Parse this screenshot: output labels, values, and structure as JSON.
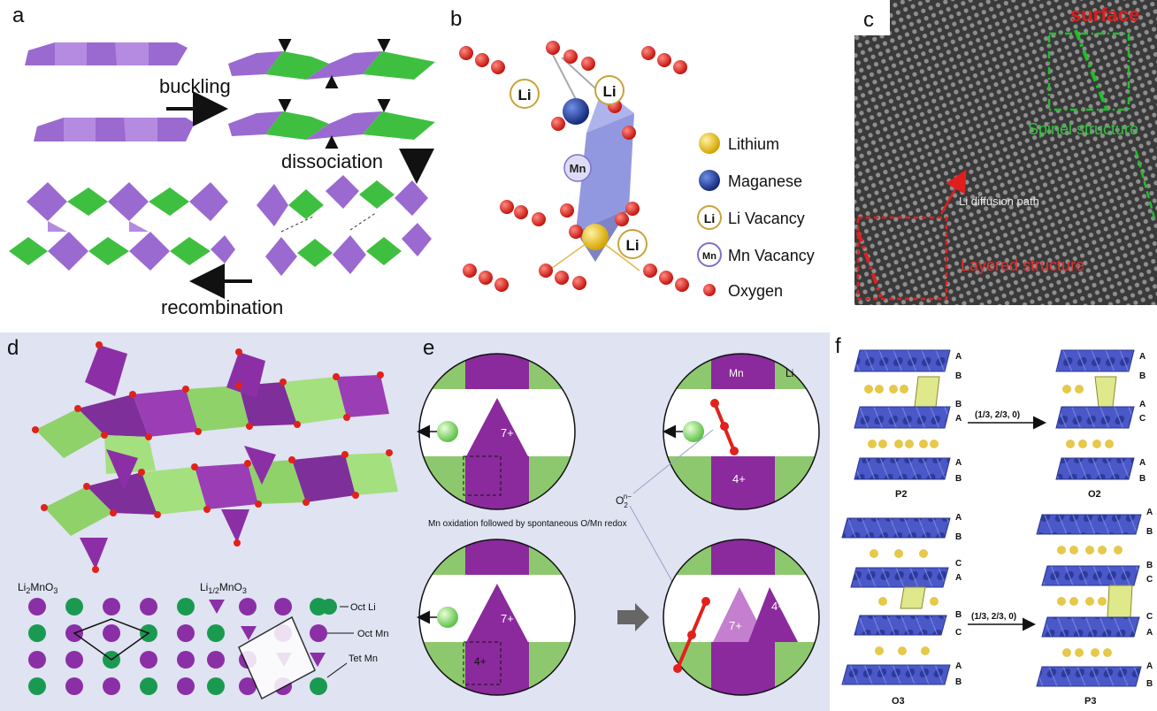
{
  "panel_labels": [
    "a",
    "b",
    "c",
    "d",
    "e",
    "f"
  ],
  "panel_a": {
    "buckling": "buckling",
    "dissociation": "dissociation",
    "recombination": "recombination"
  },
  "panel_b": {
    "atom_labels": {
      "li": "Li",
      "mn": "Mn"
    },
    "legend": [
      {
        "label": "Lithium",
        "color": "#f2c81e",
        "kind": "sphere"
      },
      {
        "label": "Maganese",
        "color": "#1f3c9e",
        "kind": "sphere"
      },
      {
        "label": "Li Vacancy",
        "color": "#c9a23a",
        "kind": "vacancy",
        "symbol": "Li"
      },
      {
        "label": "Mn Vacancy",
        "color": "#7b73c8",
        "kind": "vacancy",
        "symbol": "Mn"
      },
      {
        "label": "Oxygen",
        "color": "#e0221c",
        "kind": "dot"
      }
    ]
  },
  "panel_c": {
    "surface": "surface",
    "spinel": "Spinel structure",
    "li_path": "Li diffusion path",
    "layered": "Layered structure"
  },
  "panel_d": {
    "formula1": {
      "base": "Li",
      "sub": "2",
      "rest": "MnO",
      "sub2": "3"
    },
    "formula2": {
      "base": "Li",
      "sub": "1/2",
      "rest": "MnO",
      "sub2": "3"
    },
    "legend": [
      "Oct Li",
      "Oct Mn",
      "Tet Mn"
    ]
  },
  "panel_e": {
    "caption": "Mn oxidation followed by spontaneous O/Mn redox",
    "mn": "Mn",
    "li": "Li",
    "o2_base": "O",
    "o2_sub": "2",
    "o2_sup": "n−",
    "charges": {
      "q7": "7+",
      "q4": "4+"
    }
  },
  "panel_f": {
    "structures": [
      "P2",
      "O2",
      "O3",
      "P3"
    ],
    "shift": "(1/3, 2/3, 0)",
    "stack_P2": [
      "A",
      "B",
      "B",
      "A",
      "A",
      "B"
    ],
    "stack_O2": [
      "A",
      "B",
      "A",
      "C",
      "A",
      "B"
    ],
    "stack_O3": [
      "A",
      "B",
      "C",
      "A",
      "B",
      "C",
      "A",
      "B"
    ],
    "stack_P3": [
      "A",
      "B",
      "B",
      "C",
      "C",
      "A",
      "A",
      "B"
    ]
  }
}
